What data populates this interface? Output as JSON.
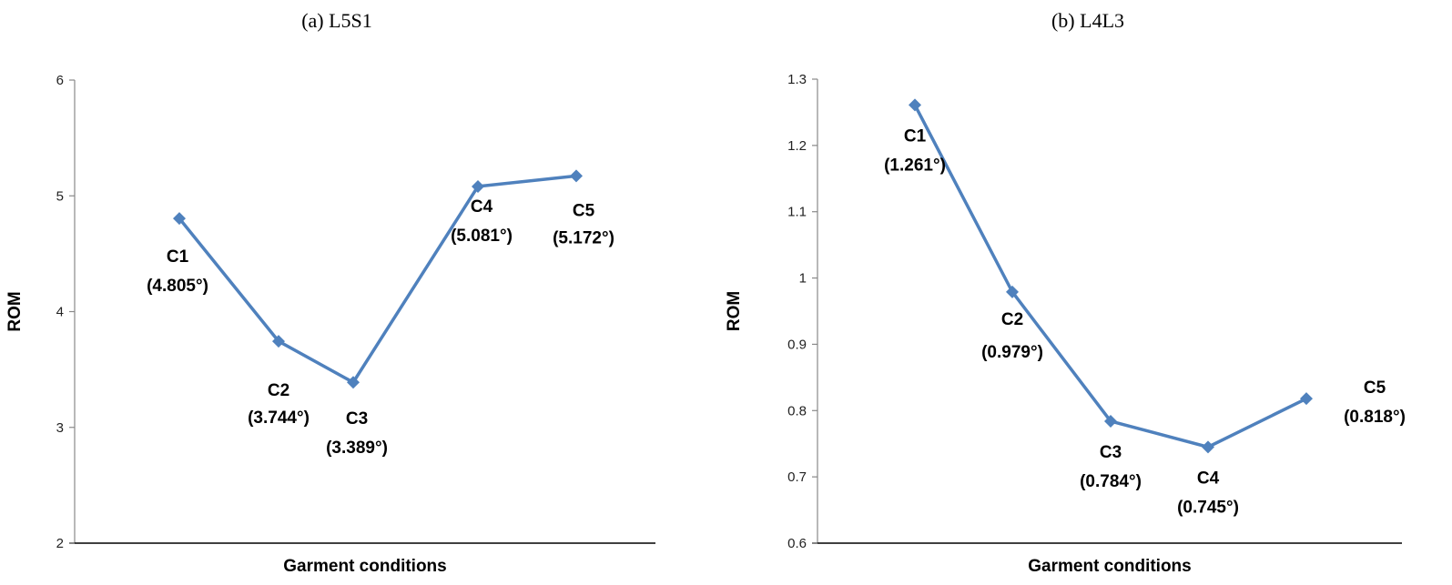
{
  "chart_data": [
    {
      "type": "line",
      "title": "(a) L5S1",
      "xlabel": "Garment conditions",
      "ylabel": "ROM",
      "ylim": [
        2,
        6
      ],
      "yticks": [
        "2",
        "3",
        "4",
        "5",
        "6"
      ],
      "grid": false,
      "categories": [
        "C1",
        "C2",
        "C3",
        "C4",
        "C5"
      ],
      "values": [
        4.805,
        3.744,
        3.389,
        5.081,
        5.172
      ],
      "data_labels": [
        "(4.805°)",
        "(3.744°)",
        "(3.389°)",
        "(5.081°)",
        "(5.172°)"
      ],
      "color": "#4f81bd",
      "marker": "diamond"
    },
    {
      "type": "line",
      "title": "(b) L4L3",
      "xlabel": "Garment conditions",
      "ylabel": "ROM",
      "ylim": [
        0.6,
        1.3
      ],
      "yticks": [
        "0.6",
        "0.7",
        "0.8",
        "0.9",
        "1",
        "1.1",
        "1.2",
        "1.3"
      ],
      "grid": false,
      "categories": [
        "C1",
        "C2",
        "C3",
        "C4",
        "C5"
      ],
      "values": [
        1.261,
        0.979,
        0.784,
        0.745,
        0.818
      ],
      "data_labels": [
        "(1.261°)",
        "(0.979°)",
        "(0.784°)",
        "(0.745°)",
        "(0.818°)"
      ],
      "color": "#4f81bd",
      "marker": "diamond"
    }
  ]
}
